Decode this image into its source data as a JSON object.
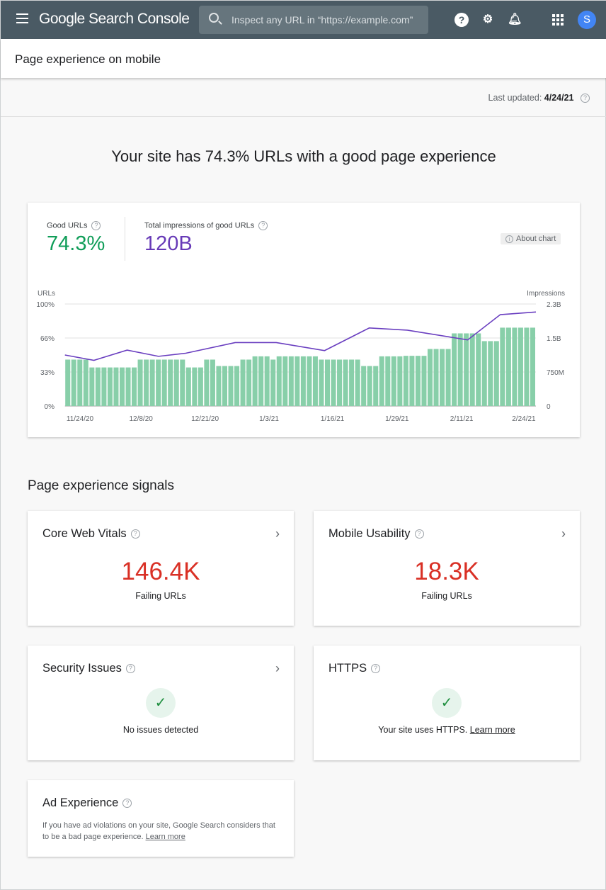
{
  "header": {
    "app_title": "Google Search Console",
    "search_placeholder": "Inspect any URL in “https://example.com”",
    "avatar_letter": "S",
    "icons": [
      "menu-icon",
      "search-icon",
      "help-icon",
      "admin-settings-icon",
      "bell-icon",
      "apps-icon"
    ]
  },
  "page": {
    "title": "Page experience on mobile",
    "last_updated_label": "Last updated:",
    "last_updated_value": "4/24/21",
    "headline": "Your site has 74.3% URLs with a good page experience"
  },
  "summary": {
    "good_urls_label": "Good URLs",
    "good_urls_value": "74.3%",
    "impressions_label": "Total impressions of good URLs",
    "impressions_value": "120B",
    "about_chart": "About chart"
  },
  "colors": {
    "header": "#4a5a64",
    "bars": "#88cfa9",
    "line": "#6a3fc0",
    "good": "#0f9d58",
    "impressions": "#673ab7",
    "failing": "#d93025"
  },
  "chart_data": {
    "type": "bar+line",
    "left_axis": {
      "label": "URLs",
      "ticks": [
        "0%",
        "33%",
        "66%",
        "100%"
      ],
      "range": [
        0,
        100
      ],
      "unit": "%"
    },
    "right_axis": {
      "label": "Impressions",
      "ticks": [
        "0",
        "750M",
        "1.5B",
        "2.3B"
      ],
      "range": [
        0,
        2.3
      ],
      "unit": "B"
    },
    "x_ticks": [
      {
        "label": "11/24/20",
        "bar": 3
      },
      {
        "label": "12/8/20",
        "bar": 13.1
      },
      {
        "label": "12/21/20",
        "bar": 23.7
      },
      {
        "label": "1/3/21",
        "bar": 34.3
      },
      {
        "label": "1/16/21",
        "bar": 44.8
      },
      {
        "label": "1/29/21",
        "bar": 55.5
      },
      {
        "label": "2/11/21",
        "bar": 66.2
      },
      {
        "label": "2/24/21",
        "bar": 76.5
      }
    ],
    "bars_percent": [
      45.5,
      45.5,
      45.5,
      45.5,
      37.8,
      37.8,
      37.8,
      37.8,
      37.8,
      37.8,
      37.8,
      37.8,
      45.5,
      45.5,
      45.5,
      45.5,
      45.5,
      45.5,
      45.5,
      45.5,
      37.8,
      37.8,
      37.8,
      45.5,
      45.5,
      39.2,
      39.2,
      39.2,
      39.2,
      45.5,
      45.5,
      48.7,
      48.7,
      48.7,
      45.5,
      48.7,
      48.7,
      48.7,
      48.7,
      48.7,
      48.7,
      48.7,
      45.5,
      45.5,
      45.5,
      45.5,
      45.5,
      45.5,
      45.5,
      39.2,
      39.2,
      39.2,
      48.7,
      48.7,
      48.7,
      48.7,
      49.2,
      49.2,
      49.2,
      49.2,
      55.9,
      55.9,
      55.9,
      55.9,
      71.2,
      71.2,
      71.2,
      71.2,
      71.2,
      63.6,
      63.6,
      63.6,
      76.8,
      76.8,
      76.8,
      76.8,
      76.8,
      76.8
    ],
    "impressions_line_B": [
      [
        1,
        1.15
      ],
      [
        5.3,
        1.03
      ],
      [
        10.8,
        1.26
      ],
      [
        16,
        1.12
      ],
      [
        20.5,
        1.19
      ],
      [
        28.7,
        1.43
      ],
      [
        35.5,
        1.43
      ],
      [
        43.5,
        1.25
      ],
      [
        50.9,
        1.76
      ],
      [
        57.2,
        1.71
      ],
      [
        67.2,
        1.49
      ],
      [
        72.6,
        2.06
      ],
      [
        78,
        2.12
      ]
    ],
    "grid": true
  },
  "signals": {
    "heading": "Page experience signals",
    "core_web_vitals": {
      "title": "Core Web Vitals",
      "value": "146.4K",
      "sub": "Failing URLs"
    },
    "mobile_usability": {
      "title": "Mobile Usability",
      "value": "18.3K",
      "sub": "Failing URLs"
    },
    "security": {
      "title": "Security Issues",
      "message": "No issues detected"
    },
    "https": {
      "title": "HTTPS",
      "message": "Your site uses HTTPS.",
      "link": "Learn more"
    },
    "ad_experience": {
      "title": "Ad Experience",
      "message": "If you have ad violations on your site, Google Search considers that to be a bad page experience.",
      "link": "Learn more"
    }
  }
}
